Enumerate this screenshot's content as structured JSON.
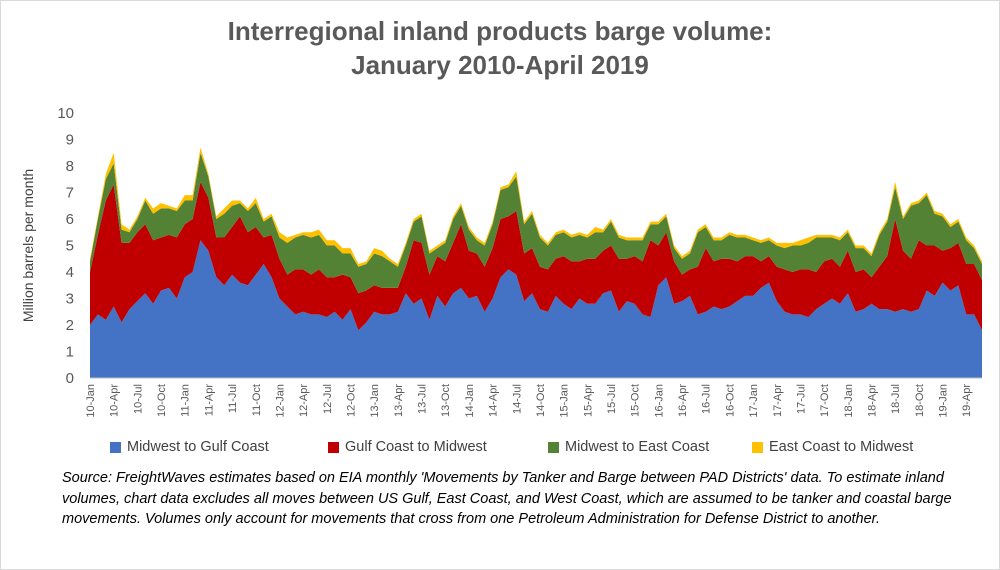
{
  "title_line1": "Interregional inland products barge volume:",
  "title_line2": "January 2010-April 2019",
  "source_text": "Source: FreightWaves estimates based on EIA monthly 'Movements by Tanker and Barge between PAD Districts' data. To estimate inland volumes, chart data excludes all moves between US Gulf, East Coast, and West Coast, which are assumed to be tanker and coastal barge movements. Volumes only account for movements that cross from one Petroleum Administration for Defense District to another.",
  "chart_data": {
    "type": "area",
    "stacked": true,
    "title": "Interregional inland products barge volume: January 2010-April 2019",
    "ylabel": "Million barrels per month",
    "xlabel": "",
    "ylim": [
      0,
      10
    ],
    "yticks": [
      0,
      1,
      2,
      3,
      4,
      5,
      6,
      7,
      8,
      9,
      10
    ],
    "grid": false,
    "legend_position": "bottom",
    "x_tick_labels": [
      "10-Jan",
      "10-Apr",
      "10-Jul",
      "10-Oct",
      "11-Jan",
      "11-Apr",
      "11-Jul",
      "11-Oct",
      "12-Jan",
      "12-Apr",
      "12-Jul",
      "12-Oct",
      "13-Jan",
      "13-Apr",
      "13-Jul",
      "13-Oct",
      "14-Jan",
      "14-Apr",
      "14-Jul",
      "14-Oct",
      "15-Jan",
      "15-Apr",
      "15-Jul",
      "15-Oct",
      "16-Jan",
      "16-Apr",
      "16-Jul",
      "16-Oct",
      "17-Jan",
      "17-Apr",
      "17-Jul",
      "17-Oct",
      "18-Jan",
      "18-Apr",
      "18-Jul",
      "18-Oct",
      "19-Jan",
      "19-Apr"
    ],
    "series": [
      {
        "name": "Midwest to Gulf Coast",
        "color": "#4472c4",
        "values": [
          2.0,
          2.4,
          2.2,
          2.7,
          2.1,
          2.6,
          2.9,
          3.2,
          2.8,
          3.3,
          3.4,
          3.0,
          3.8,
          4.0,
          5.2,
          4.8,
          3.8,
          3.5,
          3.9,
          3.6,
          3.5,
          3.9,
          4.3,
          3.8,
          3.0,
          2.7,
          2.4,
          2.5,
          2.4,
          2.4,
          2.3,
          2.5,
          2.2,
          2.6,
          1.8,
          2.1,
          2.5,
          2.4,
          2.4,
          2.5,
          3.2,
          2.8,
          3.0,
          2.2,
          3.1,
          2.7,
          3.2,
          3.4,
          3.0,
          3.1,
          2.5,
          3.0,
          3.8,
          4.1,
          3.9,
          2.9,
          3.2,
          2.6,
          2.5,
          3.1,
          2.8,
          2.6,
          3.0,
          2.8,
          2.8,
          3.2,
          3.3,
          2.5,
          2.9,
          2.8,
          2.4,
          2.3,
          3.5,
          3.8,
          2.8,
          2.9,
          3.1,
          2.4,
          2.5,
          2.7,
          2.6,
          2.7,
          2.9,
          3.1,
          3.1,
          3.4,
          3.6,
          2.9,
          2.5,
          2.4,
          2.4,
          2.3,
          2.6,
          2.8,
          3.0,
          2.8,
          3.2,
          2.5,
          2.6,
          2.8,
          2.6,
          2.6,
          2.5,
          2.6,
          2.5,
          2.6,
          3.3,
          3.1,
          3.6,
          3.3,
          3.5,
          2.4,
          2.4,
          1.8
        ]
      },
      {
        "name": "Gulf Coast to Midwest",
        "color": "#c00000",
        "values": [
          2.0,
          3.0,
          4.5,
          4.6,
          3.0,
          2.5,
          2.6,
          2.6,
          2.4,
          2.0,
          2.0,
          2.3,
          2.0,
          2.0,
          2.2,
          2.0,
          1.5,
          1.8,
          1.8,
          2.5,
          2.0,
          1.8,
          1.0,
          1.6,
          1.5,
          1.2,
          1.7,
          1.6,
          1.5,
          1.7,
          1.5,
          1.3,
          1.7,
          1.2,
          1.4,
          1.2,
          1.0,
          1.0,
          1.0,
          0.9,
          1.0,
          2.4,
          2.1,
          1.7,
          1.5,
          1.7,
          1.9,
          2.4,
          1.8,
          1.6,
          1.7,
          1.9,
          2.2,
          2.0,
          2.4,
          1.8,
          1.7,
          1.6,
          1.6,
          1.4,
          1.8,
          1.8,
          1.4,
          1.7,
          1.7,
          1.6,
          1.7,
          2.0,
          1.6,
          1.8,
          2.0,
          2.9,
          1.5,
          1.7,
          1.6,
          1.0,
          1.0,
          1.8,
          2.4,
          1.7,
          1.9,
          1.8,
          1.5,
          1.5,
          1.5,
          1.0,
          1.0,
          1.3,
          1.6,
          1.6,
          1.7,
          1.8,
          1.4,
          1.6,
          1.5,
          1.4,
          1.6,
          1.5,
          1.5,
          1.0,
          1.6,
          2.0,
          3.5,
          2.2,
          2.0,
          2.6,
          1.7,
          1.9,
          1.2,
          1.6,
          1.6,
          1.9,
          1.9,
          1.9
        ]
      },
      {
        "name": "Midwest to East Coast",
        "color": "#548235",
        "values": [
          0.4,
          0.6,
          0.8,
          0.8,
          0.5,
          0.4,
          0.5,
          0.9,
          1.0,
          1.1,
          1.0,
          1.0,
          0.9,
          0.7,
          1.1,
          0.8,
          0.7,
          0.9,
          0.8,
          0.5,
          0.8,
          0.9,
          0.6,
          0.7,
          0.8,
          1.2,
          1.2,
          1.3,
          1.4,
          1.3,
          1.2,
          1.2,
          0.8,
          0.9,
          1.0,
          1.0,
          1.2,
          1.2,
          1.0,
          0.8,
          0.8,
          0.7,
          1.0,
          0.8,
          0.3,
          0.7,
          0.9,
          0.7,
          0.8,
          0.5,
          0.8,
          0.9,
          1.1,
          1.1,
          1.3,
          1.1,
          1.3,
          1.1,
          0.9,
          0.9,
          0.9,
          0.9,
          1.0,
          0.8,
          1.0,
          0.7,
          0.9,
          0.8,
          0.7,
          0.6,
          0.8,
          0.6,
          0.8,
          0.6,
          0.5,
          0.6,
          0.6,
          1.3,
          0.8,
          0.8,
          0.7,
          0.9,
          0.9,
          0.7,
          0.6,
          0.7,
          0.6,
          0.8,
          0.8,
          1.0,
          0.9,
          1.0,
          1.3,
          0.9,
          0.8,
          1.0,
          0.7,
          0.9,
          0.8,
          0.8,
          1.2,
          1.3,
          1.2,
          1.2,
          2.0,
          1.4,
          1.9,
          1.2,
          1.3,
          0.8,
          0.8,
          0.9,
          0.6,
          0.6
        ]
      },
      {
        "name": "East Coast to Midwest",
        "color": "#ffc000",
        "values": [
          0.1,
          0.1,
          0.2,
          0.4,
          0.2,
          0.1,
          0.1,
          0.1,
          0.2,
          0.2,
          0.1,
          0.1,
          0.2,
          0.2,
          0.2,
          0.1,
          0.1,
          0.2,
          0.2,
          0.1,
          0.1,
          0.2,
          0.1,
          0.1,
          0.2,
          0.2,
          0.1,
          0.1,
          0.2,
          0.2,
          0.2,
          0.2,
          0.2,
          0.2,
          0.1,
          0.1,
          0.2,
          0.2,
          0.1,
          0.1,
          0.1,
          0.1,
          0.1,
          0.1,
          0.1,
          0.1,
          0.1,
          0.1,
          0.1,
          0.1,
          0.1,
          0.1,
          0.1,
          0.1,
          0.2,
          0.1,
          0.1,
          0.1,
          0.1,
          0.1,
          0.1,
          0.1,
          0.1,
          0.1,
          0.2,
          0.1,
          0.1,
          0.1,
          0.1,
          0.1,
          0.1,
          0.1,
          0.1,
          0.1,
          0.1,
          0.1,
          0.1,
          0.1,
          0.1,
          0.1,
          0.1,
          0.1,
          0.1,
          0.1,
          0.1,
          0.1,
          0.1,
          0.1,
          0.2,
          0.1,
          0.2,
          0.2,
          0.1,
          0.1,
          0.1,
          0.1,
          0.1,
          0.1,
          0.1,
          0.1,
          0.1,
          0.1,
          0.2,
          0.1,
          0.1,
          0.1,
          0.1,
          0.1,
          0.1,
          0.1,
          0.1,
          0.1,
          0.1,
          0.1
        ]
      }
    ]
  }
}
